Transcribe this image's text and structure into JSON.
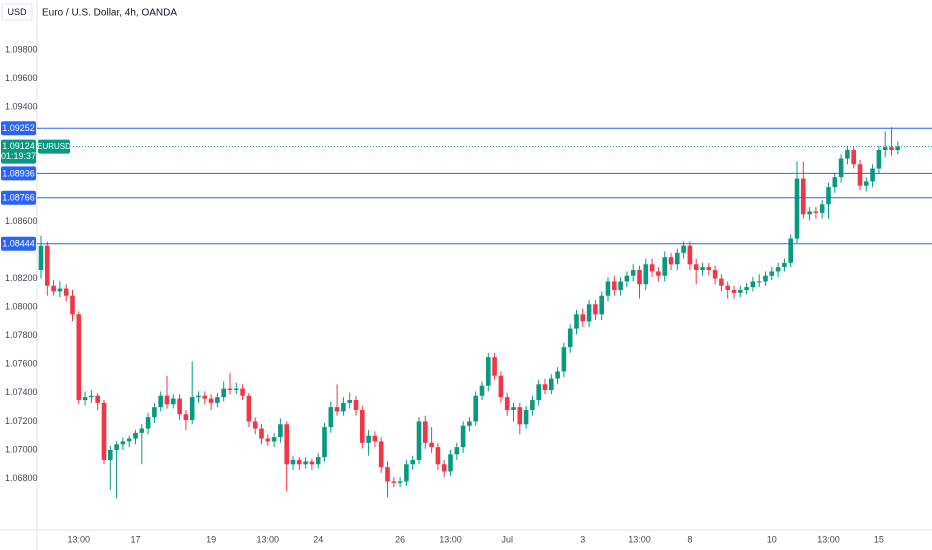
{
  "header": {
    "currency": "USD",
    "title": "Euro / U.S. Dollar, 4h, OANDA"
  },
  "chart_data": {
    "type": "candlestick",
    "up_color": "#089981",
    "down_color": "#f23645",
    "level_color": "#2962ff",
    "ylim": [
      1.0644,
      1.1015
    ],
    "yticks": [
      {
        "value": 1.098,
        "label": "1.09800"
      },
      {
        "value": 1.096,
        "label": "1.09600"
      },
      {
        "value": 1.094,
        "label": "1.09400"
      },
      {
        "value": 1.086,
        "label": "1.08600"
      },
      {
        "value": 1.082,
        "label": "1.08200"
      },
      {
        "value": 1.08,
        "label": "1.08000"
      },
      {
        "value": 1.078,
        "label": "1.07800"
      },
      {
        "value": 1.076,
        "label": "1.07600"
      },
      {
        "value": 1.074,
        "label": "1.07400"
      },
      {
        "value": 1.072,
        "label": "1.07200"
      },
      {
        "value": 1.07,
        "label": "1.07000"
      },
      {
        "value": 1.068,
        "label": "1.06800"
      }
    ],
    "levels": [
      1.09252,
      1.08936,
      1.08766,
      1.08444
    ],
    "last": {
      "value": 1.09124,
      "symbol": "EURUSD",
      "countdown": "01:19:37"
    },
    "categories": [
      null,
      null,
      null,
      null,
      null,
      null,
      "13:00",
      null,
      null,
      null,
      null,
      null,
      null,
      null,
      null,
      "17",
      null,
      null,
      null,
      null,
      null,
      null,
      null,
      null,
      null,
      null,
      null,
      "19",
      null,
      null,
      null,
      null,
      null,
      null,
      null,
      null,
      "13:00",
      null,
      null,
      null,
      null,
      null,
      null,
      null,
      "24",
      null,
      null,
      null,
      null,
      null,
      null,
      null,
      null,
      null,
      null,
      null,
      null,
      "26",
      null,
      null,
      null,
      null,
      null,
      null,
      null,
      "13:00",
      null,
      null,
      null,
      null,
      null,
      null,
      null,
      null,
      "Jul",
      null,
      null,
      null,
      null,
      null,
      null,
      null,
      null,
      null,
      null,
      null,
      "3",
      null,
      null,
      null,
      null,
      null,
      null,
      null,
      null,
      "13:00",
      null,
      null,
      null,
      null,
      null,
      null,
      null,
      "8",
      null,
      null,
      null,
      null,
      null,
      null,
      null,
      null,
      null,
      null,
      null,
      null,
      "10",
      null,
      null,
      null,
      null,
      null,
      null,
      null,
      null,
      "13:00",
      null,
      null,
      null,
      null,
      null,
      null,
      null,
      "15",
      null,
      null,
      null
    ],
    "ohlc": [
      [
        1.0826,
        1.085,
        1.082,
        1.0843
      ],
      [
        1.0843,
        1.0846,
        1.0808,
        1.0815
      ],
      [
        1.0815,
        1.0819,
        1.0808,
        1.0811
      ],
      [
        1.0811,
        1.0818,
        1.0807,
        1.0813
      ],
      [
        1.0813,
        1.0816,
        1.0804,
        1.0808
      ],
      [
        1.0808,
        1.0812,
        1.079,
        1.0795
      ],
      [
        1.0795,
        1.0797,
        1.0732,
        1.0735
      ],
      [
        1.0735,
        1.0741,
        1.0731,
        1.0737
      ],
      [
        1.0737,
        1.0742,
        1.0733,
        1.0738
      ],
      [
        1.0738,
        1.074,
        1.0728,
        1.0733
      ],
      [
        1.0733,
        1.0735,
        1.069,
        1.0693
      ],
      [
        1.0693,
        1.0703,
        1.0672,
        1.07
      ],
      [
        1.07,
        1.0706,
        1.0666,
        1.0704
      ],
      [
        1.0704,
        1.0709,
        1.07,
        1.0706
      ],
      [
        1.0706,
        1.071,
        1.0702,
        1.0708
      ],
      [
        1.0708,
        1.0714,
        1.0704,
        1.0712
      ],
      [
        1.0712,
        1.0718,
        1.069,
        1.0715
      ],
      [
        1.0715,
        1.0726,
        1.0711,
        1.0723
      ],
      [
        1.0723,
        1.0733,
        1.0719,
        1.073
      ],
      [
        1.073,
        1.0741,
        1.0727,
        1.0738
      ],
      [
        1.0738,
        1.0752,
        1.0729,
        1.0732
      ],
      [
        1.0732,
        1.0739,
        1.0729,
        1.0736
      ],
      [
        1.0736,
        1.0739,
        1.0721,
        1.0725
      ],
      [
        1.0725,
        1.0728,
        1.0714,
        1.0721
      ],
      [
        1.0721,
        1.0762,
        1.0718,
        1.0737
      ],
      [
        1.0737,
        1.0741,
        1.0733,
        1.0738
      ],
      [
        1.0738,
        1.0741,
        1.0732,
        1.0736
      ],
      [
        1.0736,
        1.0739,
        1.0728,
        1.0733
      ],
      [
        1.0733,
        1.074,
        1.073,
        1.0737
      ],
      [
        1.0737,
        1.0748,
        1.0734,
        1.0743
      ],
      [
        1.0743,
        1.0754,
        1.0739,
        1.0742
      ],
      [
        1.0742,
        1.0747,
        1.0739,
        1.0743
      ],
      [
        1.0743,
        1.0746,
        1.0735,
        1.0738
      ],
      [
        1.0738,
        1.074,
        1.0716,
        1.072
      ],
      [
        1.072,
        1.0723,
        1.0711,
        1.0715
      ],
      [
        1.0715,
        1.0718,
        1.0704,
        1.0708
      ],
      [
        1.0708,
        1.0711,
        1.0703,
        1.0706
      ],
      [
        1.0706,
        1.0712,
        1.0702,
        1.0709
      ],
      [
        1.0709,
        1.0722,
        1.0705,
        1.0718
      ],
      [
        1.0718,
        1.072,
        1.0671,
        1.069
      ],
      [
        1.069,
        1.0696,
        1.0686,
        1.0693
      ],
      [
        1.0693,
        1.0695,
        1.0686,
        1.069
      ],
      [
        1.069,
        1.0695,
        1.0687,
        1.0692
      ],
      [
        1.0692,
        1.0694,
        1.0686,
        1.069
      ],
      [
        1.069,
        1.0698,
        1.0687,
        1.0695
      ],
      [
        1.0695,
        1.0719,
        1.0692,
        1.0716
      ],
      [
        1.0716,
        1.0734,
        1.0712,
        1.073
      ],
      [
        1.073,
        1.0746,
        1.0724,
        1.0727
      ],
      [
        1.0727,
        1.0737,
        1.0724,
        1.0733
      ],
      [
        1.0733,
        1.074,
        1.0729,
        1.0735
      ],
      [
        1.0735,
        1.0738,
        1.0724,
        1.0728
      ],
      [
        1.0728,
        1.0731,
        1.0701,
        1.0705
      ],
      [
        1.0705,
        1.0714,
        1.0696,
        1.071
      ],
      [
        1.071,
        1.0713,
        1.0702,
        1.0706
      ],
      [
        1.0706,
        1.0709,
        1.0684,
        1.0688
      ],
      [
        1.0688,
        1.0692,
        1.0667,
        1.0678
      ],
      [
        1.0678,
        1.0681,
        1.0674,
        1.0677
      ],
      [
        1.0677,
        1.0681,
        1.0674,
        1.0678
      ],
      [
        1.0678,
        1.0693,
        1.0675,
        1.069
      ],
      [
        1.069,
        1.0696,
        1.0686,
        1.0693
      ],
      [
        1.0693,
        1.0723,
        1.069,
        1.072
      ],
      [
        1.072,
        1.0724,
        1.0701,
        1.0705
      ],
      [
        1.0705,
        1.0716,
        1.0698,
        1.0702
      ],
      [
        1.0702,
        1.0705,
        1.0686,
        1.069
      ],
      [
        1.069,
        1.0693,
        1.0681,
        1.0685
      ],
      [
        1.0685,
        1.07,
        1.0682,
        1.0697
      ],
      [
        1.0697,
        1.0705,
        1.0693,
        1.0702
      ],
      [
        1.0702,
        1.072,
        1.0698,
        1.0717
      ],
      [
        1.0717,
        1.0723,
        1.0713,
        1.072
      ],
      [
        1.072,
        1.0741,
        1.0717,
        1.0738
      ],
      [
        1.0738,
        1.0748,
        1.0735,
        1.0745
      ],
      [
        1.0745,
        1.0768,
        1.0741,
        1.0765
      ],
      [
        1.0765,
        1.0768,
        1.0749,
        1.0752
      ],
      [
        1.0752,
        1.0755,
        1.0733,
        1.0737
      ],
      [
        1.0737,
        1.074,
        1.0724,
        1.0728
      ],
      [
        1.0728,
        1.0733,
        1.072,
        1.073
      ],
      [
        1.073,
        1.0733,
        1.0711,
        1.0718
      ],
      [
        1.0718,
        1.0731,
        1.0715,
        1.0728
      ],
      [
        1.0728,
        1.0738,
        1.0724,
        1.0735
      ],
      [
        1.0735,
        1.0749,
        1.0731,
        1.0746
      ],
      [
        1.0746,
        1.075,
        1.0739,
        1.0742
      ],
      [
        1.0742,
        1.0753,
        1.0739,
        1.075
      ],
      [
        1.075,
        1.0758,
        1.0746,
        1.0755
      ],
      [
        1.0755,
        1.0775,
        1.0751,
        1.0772
      ],
      [
        1.0772,
        1.0788,
        1.0768,
        1.0785
      ],
      [
        1.0785,
        1.0798,
        1.0781,
        1.0795
      ],
      [
        1.0795,
        1.0799,
        1.0786,
        1.079
      ],
      [
        1.079,
        1.0805,
        1.0786,
        1.0802
      ],
      [
        1.0802,
        1.0805,
        1.0791,
        1.0795
      ],
      [
        1.0795,
        1.0811,
        1.0791,
        1.0808
      ],
      [
        1.0808,
        1.0821,
        1.0804,
        1.0818
      ],
      [
        1.0818,
        1.0822,
        1.0808,
        1.0812
      ],
      [
        1.0812,
        1.0821,
        1.0808,
        1.0818
      ],
      [
        1.0818,
        1.0825,
        1.0814,
        1.0822
      ],
      [
        1.0822,
        1.083,
        1.0818,
        1.0826
      ],
      [
        1.0826,
        1.0829,
        1.0806,
        1.0816
      ],
      [
        1.0816,
        1.0834,
        1.0812,
        1.083
      ],
      [
        1.083,
        1.0834,
        1.0821,
        1.0825
      ],
      [
        1.0825,
        1.0828,
        1.0818,
        1.0822
      ],
      [
        1.0822,
        1.0839,
        1.0818,
        1.0835
      ],
      [
        1.0835,
        1.0838,
        1.0826,
        1.083
      ],
      [
        1.083,
        1.0841,
        1.0826,
        1.0838
      ],
      [
        1.0838,
        1.0846,
        1.0834,
        1.0843
      ],
      [
        1.0843,
        1.0846,
        1.0826,
        1.083
      ],
      [
        1.083,
        1.0834,
        1.0816,
        1.0826
      ],
      [
        1.0826,
        1.0831,
        1.0822,
        1.0828
      ],
      [
        1.0828,
        1.0831,
        1.0822,
        1.0826
      ],
      [
        1.0826,
        1.0829,
        1.0816,
        1.082
      ],
      [
        1.082,
        1.0823,
        1.0811,
        1.0815
      ],
      [
        1.0815,
        1.0818,
        1.0806,
        1.0812
      ],
      [
        1.0812,
        1.0815,
        1.0806,
        1.081
      ],
      [
        1.081,
        1.0815,
        1.0807,
        1.0812
      ],
      [
        1.0812,
        1.0817,
        1.0809,
        1.0814
      ],
      [
        1.0814,
        1.0821,
        1.0811,
        1.0818
      ],
      [
        1.0818,
        1.0823,
        1.0814,
        1.0818
      ],
      [
        1.0818,
        1.0825,
        1.0815,
        1.0822
      ],
      [
        1.0822,
        1.0828,
        1.0819,
        1.0825
      ],
      [
        1.0825,
        1.0831,
        1.0821,
        1.0828
      ],
      [
        1.0828,
        1.0834,
        1.0825,
        1.0831
      ],
      [
        1.0831,
        1.0851,
        1.0828,
        1.0848
      ],
      [
        1.0848,
        1.0902,
        1.0845,
        1.089
      ],
      [
        1.089,
        1.0902,
        1.0862,
        1.0865
      ],
      [
        1.0865,
        1.087,
        1.0861,
        1.0867
      ],
      [
        1.0867,
        1.087,
        1.0862,
        1.0866
      ],
      [
        1.0866,
        1.0875,
        1.0862,
        1.0872
      ],
      [
        1.0872,
        1.0887,
        1.0862,
        1.0884
      ],
      [
        1.0884,
        1.0894,
        1.088,
        1.0891
      ],
      [
        1.0891,
        1.0907,
        1.0887,
        1.0904
      ],
      [
        1.0904,
        1.0913,
        1.09,
        1.091
      ],
      [
        1.091,
        1.0912,
        1.0897,
        1.09
      ],
      [
        1.09,
        1.0903,
        1.0882,
        1.0885
      ],
      [
        1.0885,
        1.0891,
        1.0881,
        1.0888
      ],
      [
        1.0888,
        1.09,
        1.0884,
        1.0897
      ],
      [
        1.0897,
        1.0913,
        1.0893,
        1.091
      ],
      [
        1.091,
        1.0923,
        1.0905,
        1.0912
      ],
      [
        1.0912,
        1.0926,
        1.0906,
        1.091
      ],
      [
        1.091,
        1.0916,
        1.0907,
        1.09124
      ]
    ]
  }
}
